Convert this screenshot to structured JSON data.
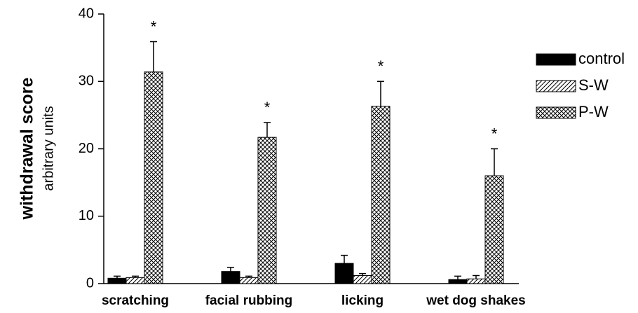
{
  "chart_data": {
    "type": "bar",
    "ylabel": "withdrawal score",
    "ysublabel": "arbitrary units",
    "categories": [
      "scratching",
      "facial rubbing",
      "licking",
      "wet dog shakes"
    ],
    "series": [
      {
        "name": "control",
        "color": "#000000",
        "pattern": "solid",
        "values": [
          0.8,
          1.8,
          3.0,
          0.6
        ],
        "errors": [
          0.3,
          0.6,
          1.2,
          0.5
        ]
      },
      {
        "name": "S-W",
        "color": "#000000",
        "pattern": "hatch",
        "values": [
          0.9,
          0.9,
          1.2,
          0.7
        ],
        "errors": [
          0.2,
          0.2,
          0.3,
          0.5
        ]
      },
      {
        "name": "P-W",
        "color": "#000000",
        "pattern": "crosshatch",
        "values": [
          31.4,
          21.7,
          26.3,
          16.0
        ],
        "errors": [
          4.5,
          2.2,
          3.7,
          4.0
        ]
      }
    ],
    "annotations": [
      "*",
      "*",
      "*",
      "*"
    ],
    "ylim": [
      0,
      40
    ],
    "yticks": [
      0,
      10,
      20,
      30,
      40
    ],
    "legend": "right"
  }
}
